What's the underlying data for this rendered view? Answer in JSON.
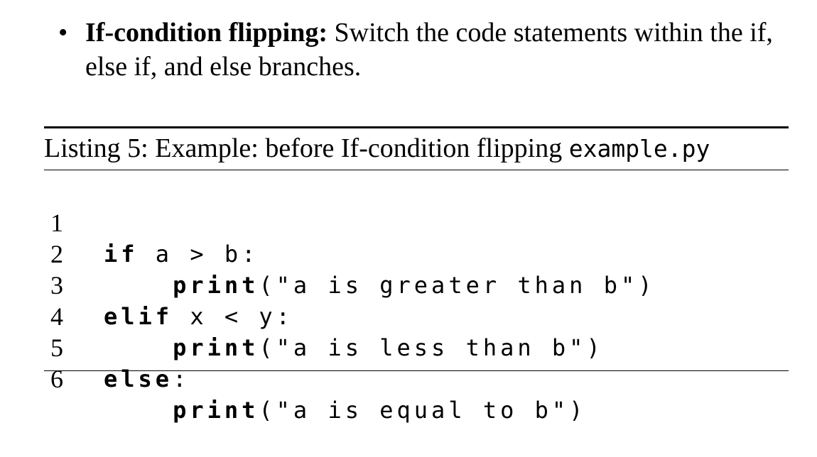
{
  "bullet": {
    "dot": "•",
    "term": "If-condition flipping:",
    "description": " Switch the code statements within the if, else if, and else branches."
  },
  "listing": {
    "caption_text": "Listing 5: Example: before If-condition flipping ",
    "caption_file": "example.py",
    "lines": [
      {
        "no": "1",
        "indent": "",
        "kw": "if",
        "rest": " a > b:"
      },
      {
        "no": "2",
        "indent": "    ",
        "kw": "print",
        "rest": "(\"a is greater than b\")"
      },
      {
        "no": "3",
        "indent": "",
        "kw": "elif",
        "rest": " x < y:"
      },
      {
        "no": "4",
        "indent": "    ",
        "kw": "print",
        "rest": "(\"a is less than b\")"
      },
      {
        "no": "5",
        "indent": "",
        "kw": "else",
        "rest": ":"
      },
      {
        "no": "6",
        "indent": "    ",
        "kw": "print",
        "rest": "(\"a is equal to b\")"
      }
    ]
  }
}
